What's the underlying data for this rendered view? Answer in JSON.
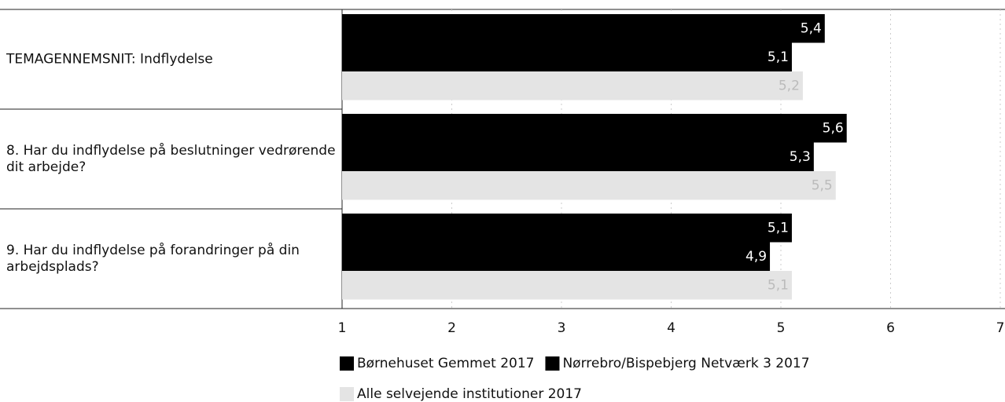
{
  "chart_data": {
    "type": "hbar",
    "categories": [
      "TEMAGENNEMSNIT: Indflydelse",
      "8. Har du indflydelse på beslutninger vedrørende dit arbejde?",
      "9. Har du indflydelse på forandringer på din arbejdsplads?"
    ],
    "series": [
      {
        "name": "Børnehuset Gemmet 2017",
        "color": "#000000",
        "values": [
          5.4,
          5.6,
          5.1
        ],
        "value_labels": [
          "5,4",
          "5,6",
          "5,1"
        ]
      },
      {
        "name": "Nørrebro/Bispebjerg Netværk 3 2017",
        "color": "#000000",
        "values": [
          5.1,
          5.3,
          4.9
        ],
        "value_labels": [
          "5,1",
          "5,3",
          "4,9"
        ]
      },
      {
        "name": "Alle selvejende institutioner 2017",
        "color": "#e4e4e4",
        "values": [
          5.2,
          5.5,
          5.1
        ],
        "value_labels": [
          "5,2",
          "5,5",
          "5,1"
        ]
      }
    ],
    "xlim": [
      1,
      7
    ],
    "xticks": [
      1,
      2,
      3,
      4,
      5,
      6,
      7
    ],
    "grid": true
  }
}
